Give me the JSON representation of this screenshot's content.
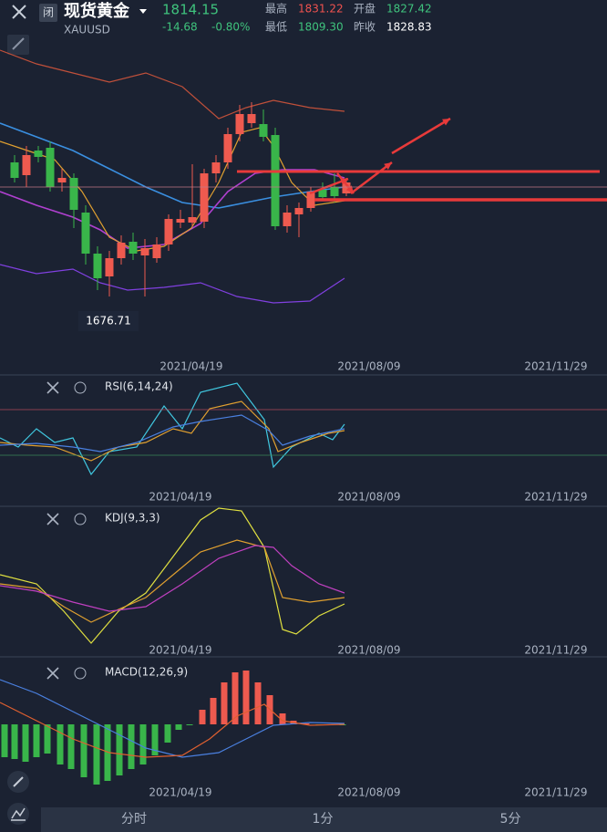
{
  "header": {
    "status": "闭",
    "title": "现货黄金",
    "symbol": "XAUUSD",
    "price": "1814.15",
    "change": "-14.68",
    "change_pct": "-0.80%",
    "high_label": "最高",
    "high": "1831.22",
    "open_label": "开盘",
    "open": "1827.42",
    "low_label": "最低",
    "low": "1809.30",
    "prev_close_label": "昨收",
    "prev_close": "1828.83"
  },
  "main_chart": {
    "low_marker": "1676.71",
    "dates": [
      "2021/04/19",
      "2021/08/09",
      "2021/11/29"
    ]
  },
  "rsi": {
    "label": "RSI(6,14,24)",
    "dates": [
      "2021/04/19",
      "2021/08/09",
      "2021/11/29"
    ]
  },
  "kdj": {
    "label": "KDJ(9,3,3)",
    "dates": [
      "2021/04/19",
      "2021/08/09",
      "2021/11/29"
    ]
  },
  "macd": {
    "label": "MACD(12,26,9)",
    "dates": [
      "2021/04/19",
      "2021/08/09",
      "2021/11/29"
    ]
  },
  "tabs": [
    "分时",
    "1分",
    "5分"
  ]
}
